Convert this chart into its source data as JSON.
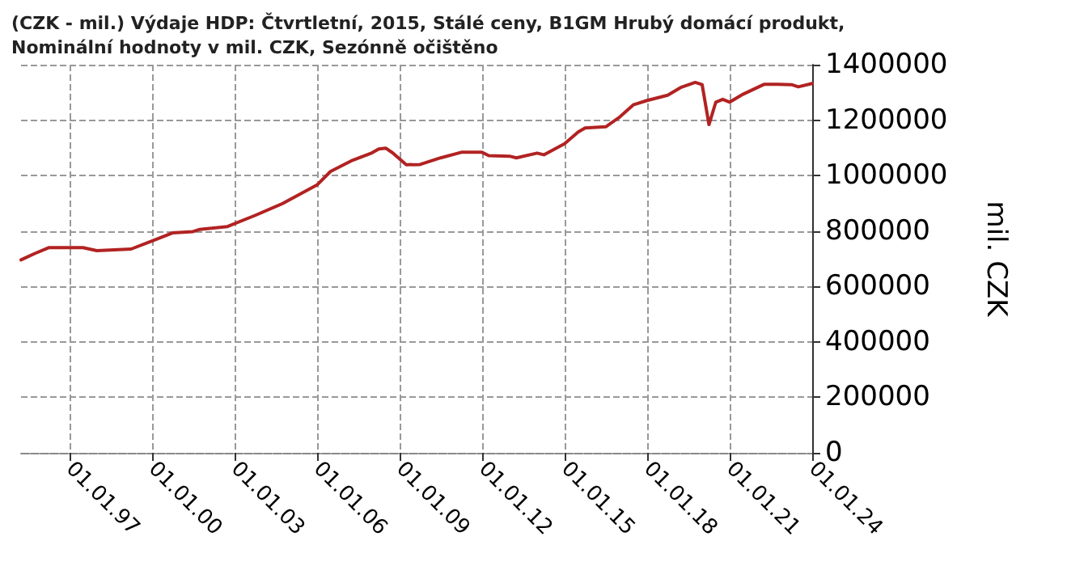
{
  "chart_data": {
    "type": "line",
    "title": "(CZK - mil.) Výdaje HDP: Čtvrtletní, 2015, Stálé ceny, B1GM Hrubý domácí produkt, Nominální hodnoty v mil. CZK, Sezónně očištěno",
    "ylabel": "mil. CZK",
    "x": [
      "1995-04",
      "1995-10",
      "1996-04",
      "1997-07",
      "1998-01",
      "1999-04",
      "2000-01",
      "2000-10",
      "2001-07",
      "2001-10",
      "2002-10",
      "2003-10",
      "2004-10",
      "2006-01",
      "2006-07",
      "2007-04",
      "2008-01",
      "2008-04",
      "2008-07",
      "2008-10",
      "2009-04",
      "2009-10",
      "2010-07",
      "2011-04",
      "2012-01",
      "2012-04",
      "2013-01",
      "2013-04",
      "2014-01",
      "2014-04",
      "2015-01",
      "2015-07",
      "2015-10",
      "2016-07",
      "2017-01",
      "2017-07",
      "2018-01",
      "2018-10",
      "2019-04",
      "2019-10",
      "2020-01",
      "2020-04",
      "2020-07",
      "2020-10",
      "2021-01",
      "2021-07",
      "2022-04",
      "2022-10",
      "2023-04",
      "2023-07",
      "2024-01"
    ],
    "series": [
      {
        "color": "#b22222",
        "values": [
          696000,
          719000,
          740000,
          740000,
          729000,
          735000,
          764000,
          793000,
          798000,
          806000,
          816000,
          856000,
          899000,
          966000,
          1015000,
          1053000,
          1082000,
          1096000,
          1099000,
          1082000,
          1039000,
          1040000,
          1064000,
          1084000,
          1084000,
          1072000,
          1070000,
          1064000,
          1081000,
          1075000,
          1115000,
          1157000,
          1172000,
          1176000,
          1211000,
          1255000,
          1271000,
          1290000,
          1319000,
          1336000,
          1328000,
          1184000,
          1265000,
          1275000,
          1265000,
          1294000,
          1329000,
          1329000,
          1328000,
          1320000,
          1332000
        ]
      }
    ],
    "xlim": [
      "1995-04",
      "2024-01"
    ],
    "xticks": [
      {
        "value": "1997-01-01",
        "label": "01.01.97"
      },
      {
        "value": "2000-01-01",
        "label": "01.01.00"
      },
      {
        "value": "2003-01-01",
        "label": "01.01.03"
      },
      {
        "value": "2006-01-01",
        "label": "01.01.06"
      },
      {
        "value": "2009-01-01",
        "label": "01.01.09"
      },
      {
        "value": "2012-01-01",
        "label": "01.01.12"
      },
      {
        "value": "2015-01-01",
        "label": "01.01.15"
      },
      {
        "value": "2018-01-01",
        "label": "01.01.18"
      },
      {
        "value": "2021-01-01",
        "label": "01.01.21"
      },
      {
        "value": "2024-01-01",
        "label": "01.01.24"
      }
    ],
    "ylim": [
      0,
      1400000
    ],
    "yticks": [
      0,
      200000,
      400000,
      600000,
      800000,
      1000000,
      1200000,
      1400000
    ],
    "grid": true,
    "marker": "none",
    "line_style": "solid"
  }
}
